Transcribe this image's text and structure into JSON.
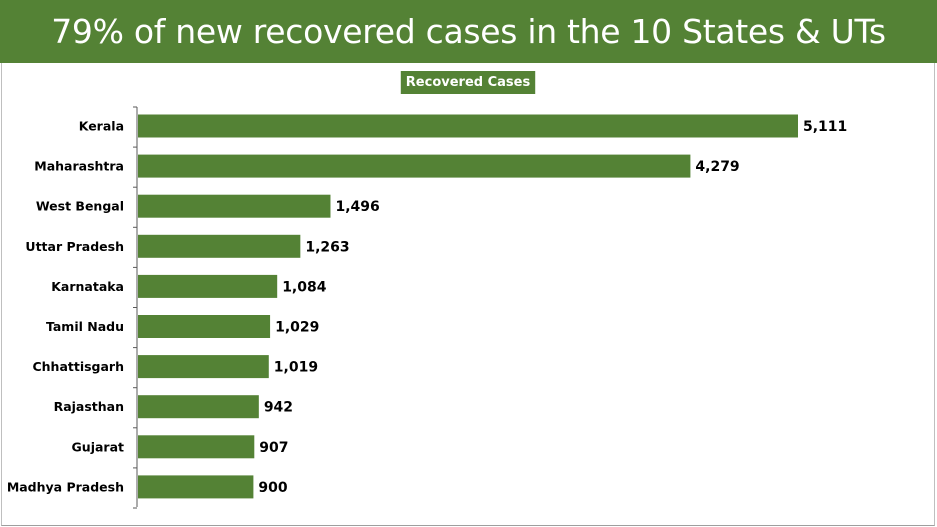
{
  "title": "79% of new recovered cases in the 10 States & UTs",
  "colors": {
    "accent": "#548235",
    "bar": "#548235",
    "title_text": "#ffffff",
    "label_text": "#000000"
  },
  "chart_data": {
    "type": "bar",
    "orientation": "horizontal",
    "title": "Recovered Cases",
    "categories": [
      "Kerala",
      "Maharashtra",
      "West Bengal",
      "Uttar Pradesh",
      "Karnataka",
      "Tamil Nadu",
      "Chhattisgarh",
      "Rajasthan",
      "Gujarat",
      "Madhya Pradesh"
    ],
    "values": [
      5111,
      4279,
      1496,
      1263,
      1084,
      1029,
      1019,
      942,
      907,
      900
    ],
    "value_labels": [
      "5,111",
      "4,279",
      "1,496",
      "1,263",
      "1,084",
      "1,029",
      "1,019",
      "942",
      "907",
      "900"
    ],
    "xlim": [
      0,
      5200
    ],
    "grid": false,
    "legend": "none"
  }
}
